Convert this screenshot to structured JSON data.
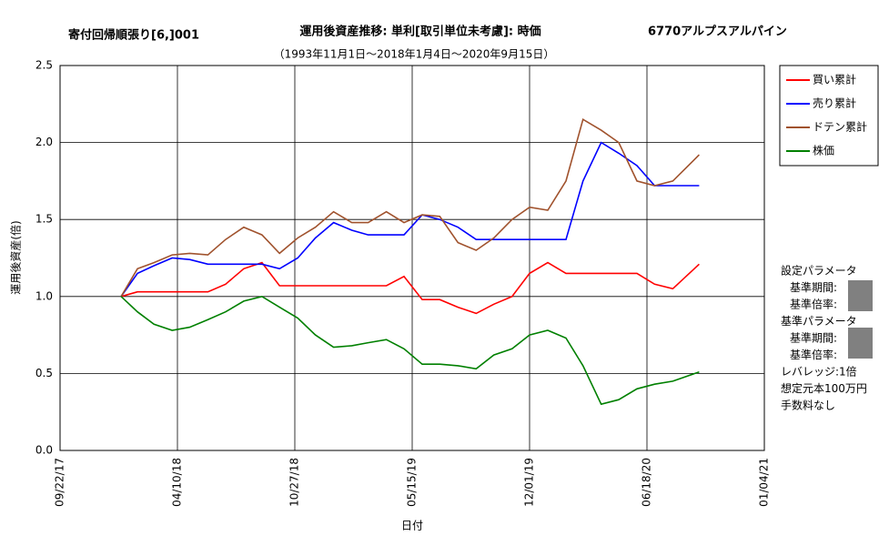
{
  "chart_data": {
    "type": "line",
    "title": "運用後資産推移: 単利[取引単位未考慮]: 時価",
    "subtitle": "（1993年11月1日～2018年1月4日～2020年9月15日）",
    "strategy": "寄付回帰順張り[6,]001",
    "ticker": "6770アルプスアルパイン",
    "x_label": "日付",
    "y_label": "運用後資産(倍)",
    "x": [
      "01/04/18",
      "02/01/18",
      "03/01/18",
      "04/01/18",
      "05/01/18",
      "06/01/18",
      "07/01/18",
      "08/01/18",
      "09/01/18",
      "10/01/18",
      "11/01/18",
      "12/01/18",
      "01/01/19",
      "02/01/19",
      "03/01/19",
      "04/01/19",
      "05/01/19",
      "06/01/19",
      "07/01/19",
      "08/01/19",
      "09/01/19",
      "10/01/19",
      "11/01/19",
      "12/01/19",
      "01/01/20",
      "02/01/20",
      "03/01/20",
      "04/01/20",
      "05/01/20",
      "06/01/20",
      "07/01/20",
      "08/01/20",
      "09/15/20"
    ],
    "series": [
      {
        "name": "買い累計",
        "color": "#ff0000",
        "values": [
          1.0,
          1.03,
          1.03,
          1.03,
          1.03,
          1.03,
          1.08,
          1.18,
          1.22,
          1.07,
          1.07,
          1.07,
          1.07,
          1.07,
          1.07,
          1.07,
          1.13,
          0.98,
          0.98,
          0.93,
          0.89,
          0.95,
          1.0,
          1.15,
          1.22,
          1.15,
          1.15,
          1.15,
          1.15,
          1.15,
          1.08,
          1.05,
          1.21
        ]
      },
      {
        "name": "売り累計",
        "color": "#0000ff",
        "values": [
          1.0,
          1.15,
          1.2,
          1.25,
          1.24,
          1.21,
          1.21,
          1.21,
          1.21,
          1.18,
          1.25,
          1.38,
          1.48,
          1.43,
          1.4,
          1.4,
          1.4,
          1.53,
          1.5,
          1.45,
          1.37,
          1.37,
          1.37,
          1.37,
          1.37,
          1.37,
          1.75,
          2.0,
          1.93,
          1.85,
          1.72,
          1.72,
          1.72
        ]
      },
      {
        "name": "ドテン累計",
        "color": "#a0522d",
        "values": [
          1.0,
          1.18,
          1.22,
          1.27,
          1.28,
          1.27,
          1.37,
          1.45,
          1.4,
          1.28,
          1.38,
          1.45,
          1.55,
          1.48,
          1.48,
          1.55,
          1.48,
          1.53,
          1.52,
          1.35,
          1.3,
          1.38,
          1.5,
          1.58,
          1.56,
          1.75,
          2.15,
          2.08,
          2.0,
          1.75,
          1.72,
          1.75,
          1.92
        ]
      },
      {
        "name": "株価",
        "color": "#008000",
        "values": [
          1.0,
          0.9,
          0.82,
          0.78,
          0.8,
          0.85,
          0.9,
          0.97,
          1.0,
          0.93,
          0.86,
          0.75,
          0.67,
          0.68,
          0.7,
          0.72,
          0.66,
          0.56,
          0.56,
          0.55,
          0.53,
          0.62,
          0.66,
          0.75,
          0.78,
          0.73,
          0.55,
          0.3,
          0.33,
          0.4,
          0.43,
          0.45,
          0.51
        ]
      }
    ],
    "xlim": [
      "09/22/17",
      "01/04/21"
    ],
    "xticks": [
      "09/22/17",
      "04/10/18",
      "10/27/18",
      "05/15/19",
      "12/01/19",
      "06/18/20",
      "01/04/21"
    ],
    "ylim": [
      0,
      2.5
    ],
    "yticks": [
      {
        "value": 0,
        "label": "0.0"
      },
      0.5,
      {
        "value": 1,
        "label": "1.0"
      },
      1.5,
      {
        "value": 2,
        "label": "2.0"
      },
      2.5
    ],
    "grid": true,
    "notes": [
      "設定パラメータ",
      "基準期間:",
      "基準倍率:",
      "基準パラメータ",
      "基準期間:",
      "基準倍率:",
      "レバレッジ:1倍",
      "想定元本100万円",
      "手数料なし"
    ]
  }
}
